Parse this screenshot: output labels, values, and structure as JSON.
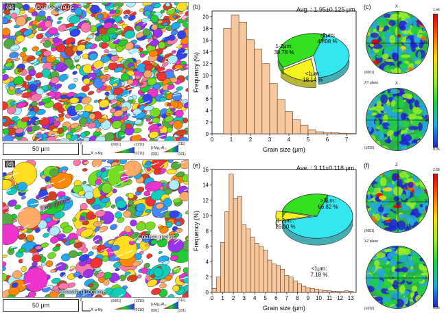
{
  "panels": {
    "a": {
      "label": "(a)",
      "annotation": "Coarse grains",
      "scalebar": "50 μm"
    },
    "b": {
      "label": "(b)",
      "avg": "Avg. : 1.95±0.125 μm"
    },
    "c": {
      "label": "(c)",
      "axis_top": "X",
      "axis_right": "Y",
      "plane": "XY plane",
      "pf1": "{0001}",
      "pf2": "{10̄10}",
      "cmax": "1.44",
      "cmin": "0.06"
    },
    "d": {
      "label": "(d)",
      "annotation1": "Fine grains",
      "annotation2": "Coarse grains",
      "annotation3": "Growth direction",
      "scalebar": "50 μm"
    },
    "e": {
      "label": "(e)",
      "avg": "Ave. : 3.11±0.118 μm"
    },
    "f": {
      "label": "(f)",
      "axis_top": "Z",
      "axis_right": "X",
      "plane": "XZ plane",
      "pf1": "{0001}",
      "pf2": "{10̄10}",
      "cmax": "2.68",
      "cmin": "0.35"
    }
  },
  "legend_a": {
    "axis_y": "Y",
    "axis_x": "X",
    "ipf1_top": "(0001)",
    "ipf1_mid": "(1̄2̄10)",
    "ipf1_bot": "(01̄10)",
    "phase1": "α-Mg",
    "phase2": "β-Mg₁₇Al₁₂",
    "ipf2_top": "(111)",
    "ipf2_bl": "(001)",
    "ipf2_br": "(101)"
  },
  "legend_d": {
    "axis_y": "Z",
    "axis_x": "X",
    "ipf1_top": "(0001)",
    "ipf1_mid": "(1̄2̄10)",
    "ipf1_bot": "(01̄10)",
    "phase1": "α-Mg",
    "phase2": "β-Mg₁₇Al₁₂",
    "ipf2_top": "(111)",
    "ipf2_bl": "(001)",
    "ipf2_br": "(101)"
  },
  "chart_data": [
    {
      "type": "bar",
      "panel": "b",
      "xlabel": "Grain size (μm)",
      "ylabel": "Frequency (%)",
      "xlim": [
        0,
        7.5
      ],
      "ylim": [
        0,
        21
      ],
      "xticks": [
        0,
        1,
        2,
        3,
        4,
        5,
        6,
        7
      ],
      "yticks": [
        0,
        2,
        4,
        6,
        8,
        10,
        12,
        14,
        16,
        18,
        20
      ],
      "bin_width": 0.4,
      "x": [
        0.8,
        1.2,
        1.6,
        2.0,
        2.4,
        2.8,
        3.2,
        3.6,
        4.0,
        4.4,
        4.8,
        5.2,
        5.6,
        6.0,
        6.4,
        6.8,
        7.2
      ],
      "values": [
        18.0,
        20.3,
        19.1,
        16.1,
        14.5,
        12.0,
        8.6,
        5.9,
        3.8,
        2.4,
        1.5,
        0.7,
        0.35,
        0.25,
        0.2,
        0.1,
        0.05
      ],
      "pie": {
        "type": "pie",
        "slices": [
          {
            "label": ">2μm:",
            "value_text": "43.08 %",
            "value": 43.08,
            "color": "#33e6f0"
          },
          {
            "label": "<1μm:",
            "value_text": "18.14 %",
            "value": 18.14,
            "color": "#f5f21e"
          },
          {
            "label": "1-2μm:",
            "value_text": "38.78 %",
            "value": 38.78,
            "color": "#33e01f"
          }
        ]
      }
    },
    {
      "type": "bar",
      "panel": "e",
      "xlabel": "Grain size (μm)",
      "ylabel": "Frequency (%)",
      "xlim": [
        0,
        13.5
      ],
      "ylim": [
        0,
        16
      ],
      "xticks": [
        0,
        1,
        2,
        3,
        4,
        5,
        6,
        7,
        8,
        9,
        10,
        11,
        12,
        13
      ],
      "yticks": [
        0,
        2,
        4,
        6,
        8,
        10,
        12,
        14,
        16
      ],
      "bin_width": 0.4,
      "x": [
        0.2,
        0.6,
        1.0,
        1.4,
        1.8,
        2.2,
        2.6,
        3.0,
        3.4,
        3.8,
        4.2,
        4.6,
        5.0,
        5.4,
        5.8,
        6.2,
        6.6,
        7.0,
        7.4,
        7.8,
        8.2,
        8.6,
        9.0,
        9.4,
        9.8,
        10.2,
        10.6,
        11.0,
        11.4,
        11.8,
        12.2,
        12.6,
        13.0
      ],
      "values": [
        0.5,
        2.0,
        6.5,
        10.5,
        15.4,
        12.2,
        12.5,
        8.8,
        8.3,
        7.2,
        6.4,
        6.0,
        5.5,
        4.2,
        3.7,
        3.5,
        3.0,
        2.2,
        2.0,
        1.5,
        1.1,
        0.8,
        0.6,
        0.5,
        0.4,
        0.3,
        0.25,
        0.2,
        0.15,
        0.12,
        0.1,
        0.2,
        0.15
      ],
      "pie": {
        "type": "pie",
        "slices": [
          {
            "label": ">2μm:",
            "value_text": "66.82 %",
            "value": 66.82,
            "color": "#33e6f0"
          },
          {
            "label": "<1μm:",
            "value_text": "7.18 %",
            "value": 7.18,
            "color": "#f5f21e"
          },
          {
            "label": "1-2μm:",
            "value_text": "26.00 %",
            "value": 26.0,
            "color": "#33e01f"
          }
        ]
      }
    }
  ]
}
